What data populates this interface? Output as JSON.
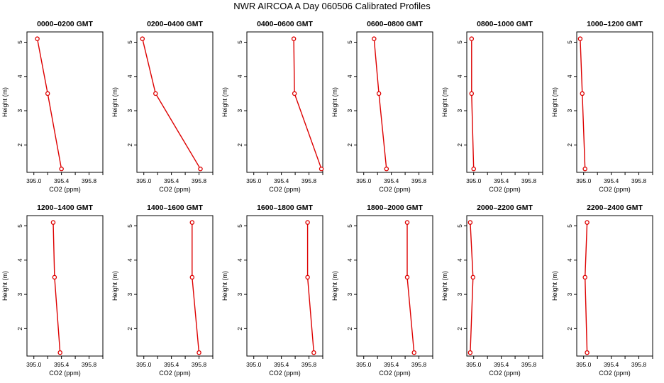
{
  "title": "NWR AIRCOA A  Day 060506  Calibrated Profiles",
  "colors": {
    "line": "#dd0000",
    "axis": "#000000",
    "background": "#ffffff"
  },
  "chart_data": [
    {
      "type": "line",
      "title": "0000–0200 GMT",
      "xlabel": "CO2 (ppm)",
      "ylabel": "Height (m)",
      "xlim": [
        394.9,
        396.0
      ],
      "ylim": [
        1.2,
        5.3
      ],
      "xticks": [
        "395.0",
        "395.2",
        "395.4",
        "395.6",
        "395.8",
        "396.0"
      ],
      "yticks": [
        "2",
        "3",
        "4",
        "5"
      ],
      "grid": false,
      "x": [
        395.05,
        395.2,
        395.4
      ],
      "y": [
        5.1,
        3.5,
        1.3
      ]
    },
    {
      "type": "line",
      "title": "0200–0400 GMT",
      "xlabel": "CO2 (ppm)",
      "ylabel": "Height (m)",
      "xlim": [
        394.9,
        396.0
      ],
      "ylim": [
        1.2,
        5.3
      ],
      "xticks": [
        "395.0",
        "395.2",
        "395.4",
        "395.6",
        "395.8",
        "396.0"
      ],
      "yticks": [
        "2",
        "3",
        "4",
        "5"
      ],
      "grid": false,
      "x": [
        394.98,
        395.17,
        395.82
      ],
      "y": [
        5.1,
        3.5,
        1.3
      ]
    },
    {
      "type": "line",
      "title": "0400–0600 GMT",
      "xlabel": "CO2 (ppm)",
      "ylabel": "Height (m)",
      "xlim": [
        394.9,
        396.0
      ],
      "ylim": [
        1.2,
        5.3
      ],
      "xticks": [
        "395.0",
        "395.2",
        "395.4",
        "395.6",
        "395.8",
        "396.0"
      ],
      "yticks": [
        "2",
        "3",
        "4",
        "5"
      ],
      "grid": false,
      "x": [
        395.58,
        395.59,
        395.98
      ],
      "y": [
        5.1,
        3.5,
        1.3
      ]
    },
    {
      "type": "line",
      "title": "0600–0800 GMT",
      "xlabel": "CO2 (ppm)",
      "ylabel": "Height (m)",
      "xlim": [
        394.9,
        396.0
      ],
      "ylim": [
        1.2,
        5.3
      ],
      "xticks": [
        "395.0",
        "395.2",
        "395.4",
        "395.6",
        "395.8",
        "396.0"
      ],
      "yticks": [
        "2",
        "3",
        "4",
        "5"
      ],
      "grid": false,
      "x": [
        395.15,
        395.22,
        395.33
      ],
      "y": [
        5.1,
        3.5,
        1.3
      ]
    },
    {
      "type": "line",
      "title": "0800–1000 GMT",
      "xlabel": "CO2 (ppm)",
      "ylabel": "Height (m)",
      "xlim": [
        394.9,
        396.0
      ],
      "ylim": [
        1.2,
        5.3
      ],
      "xticks": [
        "395.0",
        "395.2",
        "395.4",
        "395.6",
        "395.8",
        "396.0"
      ],
      "yticks": [
        "2",
        "3",
        "4",
        "5"
      ],
      "grid": false,
      "x": [
        394.97,
        394.97,
        395.0
      ],
      "y": [
        5.1,
        3.5,
        1.3
      ]
    },
    {
      "type": "line",
      "title": "1000–1200 GMT",
      "xlabel": "CO2 (ppm)",
      "ylabel": "Height (m)",
      "xlim": [
        394.9,
        396.0
      ],
      "ylim": [
        1.2,
        5.3
      ],
      "xticks": [
        "395.0",
        "395.2",
        "395.4",
        "395.6",
        "395.8",
        "396.0"
      ],
      "yticks": [
        "2",
        "3",
        "4",
        "5"
      ],
      "grid": false,
      "x": [
        394.95,
        394.98,
        395.02
      ],
      "y": [
        5.1,
        3.5,
        1.3
      ]
    },
    {
      "type": "line",
      "title": "1200–1400 GMT",
      "xlabel": "CO2 (ppm)",
      "ylabel": "Height (m)",
      "xlim": [
        394.9,
        396.0
      ],
      "ylim": [
        1.2,
        5.3
      ],
      "xticks": [
        "395.0",
        "395.2",
        "395.4",
        "395.6",
        "395.8",
        "396.0"
      ],
      "yticks": [
        "2",
        "3",
        "4",
        "5"
      ],
      "grid": false,
      "x": [
        395.28,
        395.3,
        395.38
      ],
      "y": [
        5.1,
        3.5,
        1.3
      ]
    },
    {
      "type": "line",
      "title": "1400–1600 GMT",
      "xlabel": "CO2 (ppm)",
      "ylabel": "Height (m)",
      "xlim": [
        394.9,
        396.0
      ],
      "ylim": [
        1.2,
        5.3
      ],
      "xticks": [
        "395.0",
        "395.2",
        "395.4",
        "395.6",
        "395.8",
        "396.0"
      ],
      "yticks": [
        "2",
        "3",
        "4",
        "5"
      ],
      "grid": false,
      "x": [
        395.7,
        395.7,
        395.8
      ],
      "y": [
        5.1,
        3.5,
        1.3
      ]
    },
    {
      "type": "line",
      "title": "1600–1800 GMT",
      "xlabel": "CO2 (ppm)",
      "ylabel": "Height (m)",
      "xlim": [
        394.9,
        396.0
      ],
      "ylim": [
        1.2,
        5.3
      ],
      "xticks": [
        "395.0",
        "395.2",
        "395.4",
        "395.6",
        "395.8",
        "396.0"
      ],
      "yticks": [
        "2",
        "3",
        "4",
        "5"
      ],
      "grid": false,
      "x": [
        395.78,
        395.78,
        395.87
      ],
      "y": [
        5.1,
        3.5,
        1.3
      ]
    },
    {
      "type": "line",
      "title": "1800–2000 GMT",
      "xlabel": "CO2 (ppm)",
      "ylabel": "Height (m)",
      "xlim": [
        394.9,
        396.0
      ],
      "ylim": [
        1.2,
        5.3
      ],
      "xticks": [
        "395.0",
        "395.2",
        "395.4",
        "395.6",
        "395.8",
        "396.0"
      ],
      "yticks": [
        "2",
        "3",
        "4",
        "5"
      ],
      "grid": false,
      "x": [
        395.63,
        395.63,
        395.73
      ],
      "y": [
        5.1,
        3.5,
        1.3
      ]
    },
    {
      "type": "line",
      "title": "2000–2200 GMT",
      "xlabel": "CO2 (ppm)",
      "ylabel": "Height (m)",
      "xlim": [
        394.9,
        396.0
      ],
      "ylim": [
        1.2,
        5.3
      ],
      "xticks": [
        "395.0",
        "395.2",
        "395.4",
        "395.6",
        "395.8",
        "396.0"
      ],
      "yticks": [
        "2",
        "3",
        "4",
        "5"
      ],
      "grid": false,
      "x": [
        394.95,
        394.99,
        394.95
      ],
      "y": [
        5.1,
        3.5,
        1.3
      ]
    },
    {
      "type": "line",
      "title": "2200–2400 GMT",
      "xlabel": "CO2 (ppm)",
      "ylabel": "Height (m)",
      "xlim": [
        394.9,
        396.0
      ],
      "ylim": [
        1.2,
        5.3
      ],
      "xticks": [
        "395.0",
        "395.2",
        "395.4",
        "395.6",
        "395.8",
        "396.0"
      ],
      "yticks": [
        "2",
        "3",
        "4",
        "5"
      ],
      "grid": false,
      "x": [
        395.05,
        395.02,
        395.05
      ],
      "y": [
        5.1,
        3.5,
        1.3
      ]
    }
  ]
}
